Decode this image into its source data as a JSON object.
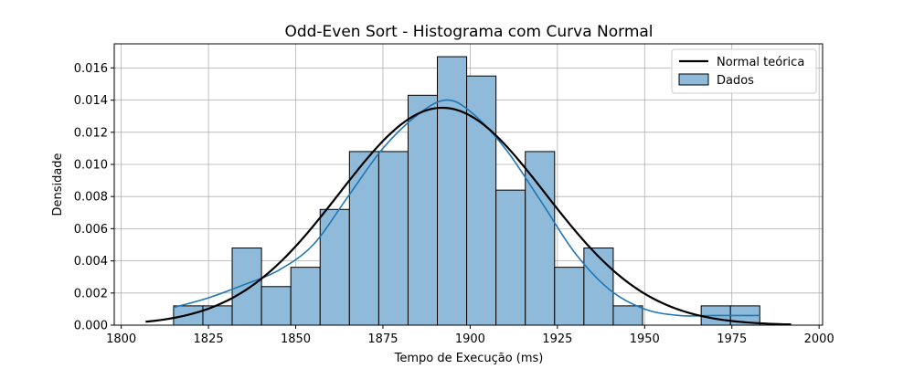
{
  "chart_data": {
    "type": "bar",
    "title": "Odd-Even Sort - Histograma com Curva Normal",
    "xlabel": "Tempo de Execução (ms)",
    "ylabel": "Densidade",
    "xlim": [
      1798,
      2001
    ],
    "ylim": [
      0,
      0.0175
    ],
    "xticks": [
      1800,
      1825,
      1850,
      1875,
      1900,
      1925,
      1950,
      1975,
      2000
    ],
    "yticks": [
      0.0,
      0.002,
      0.004,
      0.006,
      0.008,
      0.01,
      0.012,
      0.014,
      0.016
    ],
    "xtick_labels": [
      "1800",
      "1825",
      "1850",
      "1875",
      "1900",
      "1925",
      "1950",
      "1975",
      "2000"
    ],
    "ytick_labels": [
      "0.000",
      "0.002",
      "0.004",
      "0.006",
      "0.008",
      "0.010",
      "0.012",
      "0.014",
      "0.016"
    ],
    "grid": true,
    "legend_position": "top-right",
    "colors": {
      "bar_fill": "#8fbada",
      "bar_edge": "#000000",
      "kde_line": "#1f77b4",
      "normal_line": "#000000",
      "grid": "#b0b0b0"
    },
    "bins": {
      "edges": [
        1815.0,
        1823.4,
        1831.8,
        1840.2,
        1848.6,
        1857.0,
        1865.4,
        1873.8,
        1882.2,
        1890.6,
        1899.0,
        1907.4,
        1915.8,
        1924.2,
        1932.6,
        1941.0,
        1949.4,
        1957.8,
        1966.2,
        1974.6,
        1983.0
      ],
      "densities": [
        0.0012,
        0.0012,
        0.0048,
        0.0024,
        0.0036,
        0.0072,
        0.0108,
        0.0108,
        0.0143,
        0.0167,
        0.0155,
        0.0084,
        0.0108,
        0.0036,
        0.0048,
        0.0012,
        0.0,
        0.0,
        0.0012,
        0.0012
      ]
    },
    "series": [
      {
        "name": "Normal teórica",
        "kind": "normal_curve",
        "mean": 1892,
        "std": 29.5,
        "x_range": [
          1807,
          1992
        ]
      },
      {
        "name": "",
        "kind": "kde_curve",
        "x": [
          1815,
          1825,
          1835,
          1845,
          1855,
          1865,
          1875,
          1885,
          1893,
          1900,
          1910,
          1920,
          1930,
          1940,
          1950,
          1960,
          1970,
          1980,
          1983
        ],
        "y": [
          0.0011,
          0.0017,
          0.0025,
          0.0034,
          0.005,
          0.008,
          0.011,
          0.0131,
          0.014,
          0.0133,
          0.011,
          0.0078,
          0.0045,
          0.0022,
          0.001,
          0.0006,
          0.0006,
          0.0006,
          0.0006
        ]
      },
      {
        "name": "Dados",
        "kind": "histogram"
      }
    ]
  }
}
